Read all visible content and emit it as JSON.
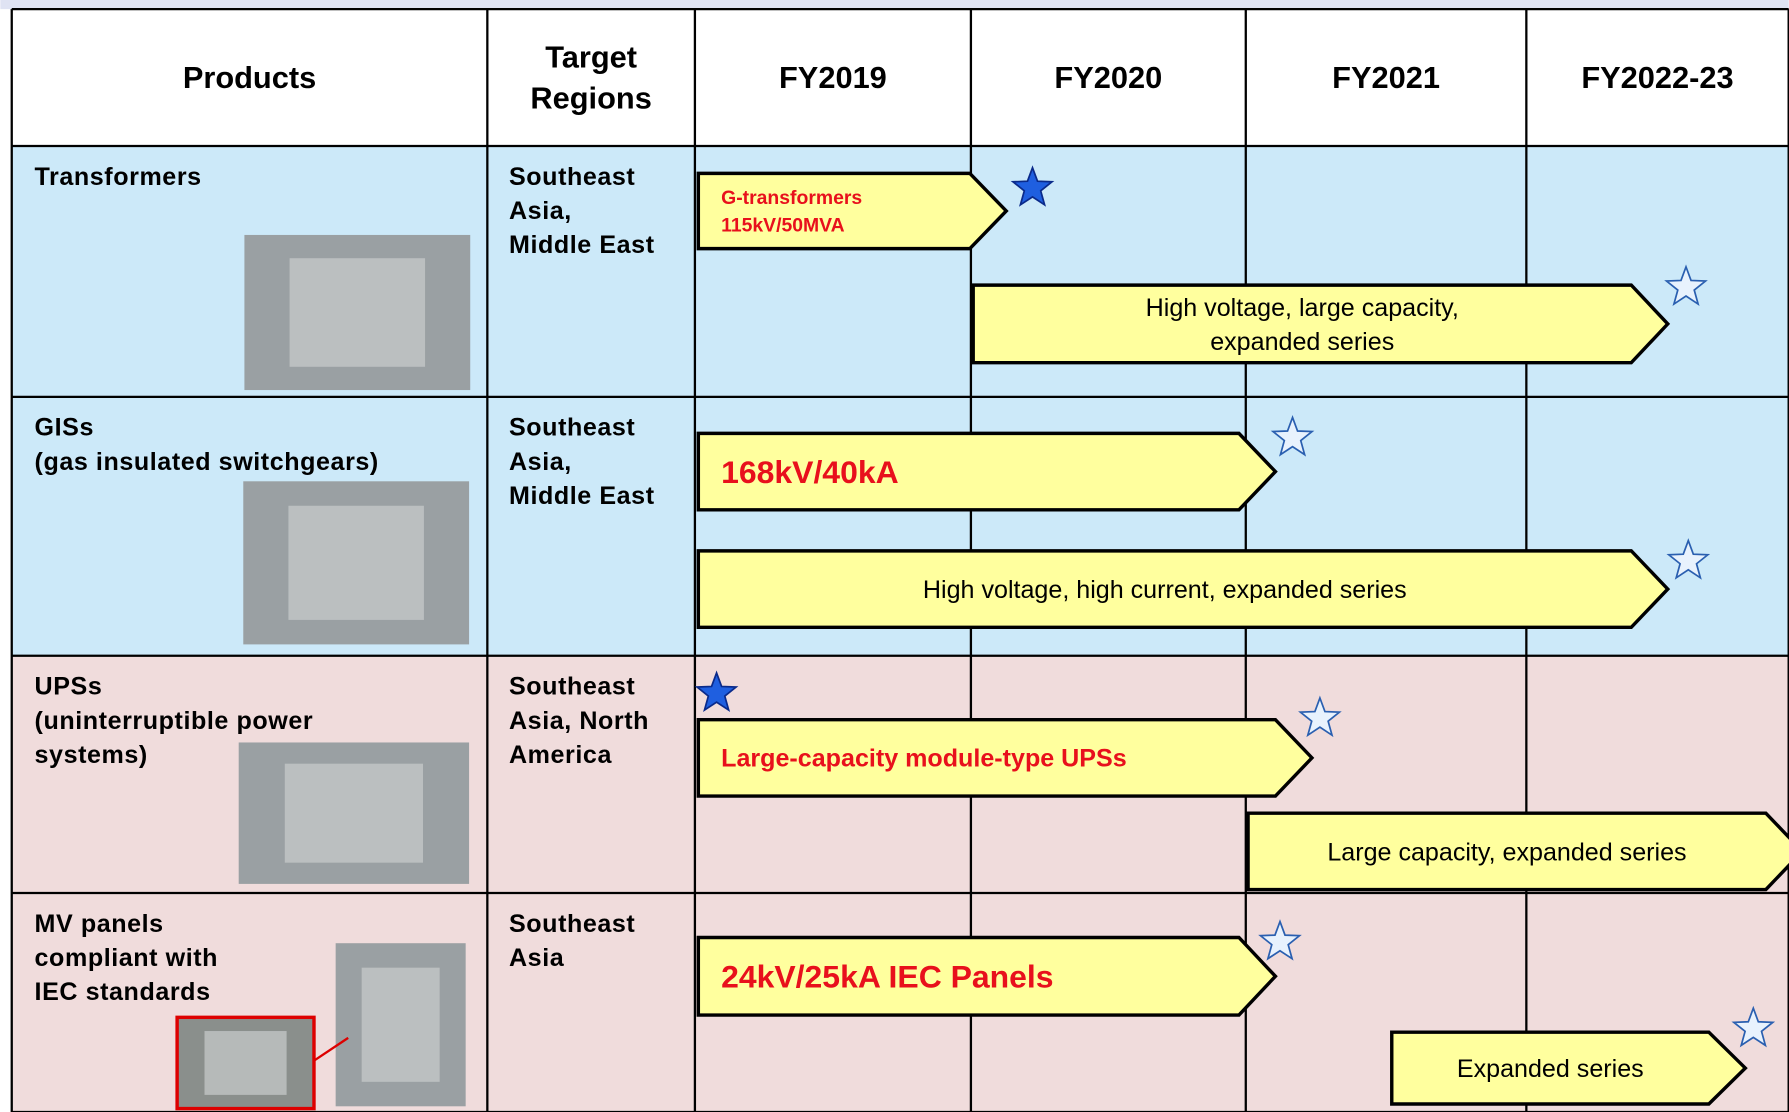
{
  "header": [
    [
      "Products"
    ],
    [
      "Target",
      "Regions"
    ],
    [
      "FY2019"
    ],
    [
      "FY2020"
    ],
    [
      "FY2021"
    ],
    [
      "FY2022-23"
    ]
  ],
  "rows": [
    {
      "product": [
        "Transformers"
      ],
      "regions": [
        "Southeast",
        "Asia,",
        "Middle East"
      ],
      "plans": [
        {
          "lines": [
            "G-transformers",
            "115kV/50MVA"
          ]
        },
        {
          "lines": [
            "High voltage, large capacity,",
            "expanded series"
          ]
        }
      ]
    },
    {
      "product": [
        "GISs",
        "(gas insulated switchgears)"
      ],
      "regions": [
        "Southeast",
        "Asia,",
        "Middle East"
      ],
      "plans": [
        {
          "lines": [
            "168kV/40kA"
          ]
        },
        {
          "lines": [
            "High voltage, high current, expanded series"
          ]
        }
      ]
    },
    {
      "product": [
        "UPSs",
        "(uninterruptible power",
        "systems)"
      ],
      "regions": [
        "Southeast",
        "Asia, North",
        "America"
      ],
      "plans": [
        {
          "lines": [
            "Large-capacity module-type UPSs"
          ]
        },
        {
          "lines": [
            "Large capacity, expanded series"
          ]
        }
      ]
    },
    {
      "product": [
        "MV panels",
        "compliant with",
        "IEC standards"
      ],
      "regions": [
        "Southeast",
        "Asia"
      ],
      "plans": [
        {
          "lines": [
            "24kV/25kA  IEC Panels"
          ]
        },
        {
          "lines": [
            "Expanded series"
          ]
        }
      ]
    }
  ]
}
